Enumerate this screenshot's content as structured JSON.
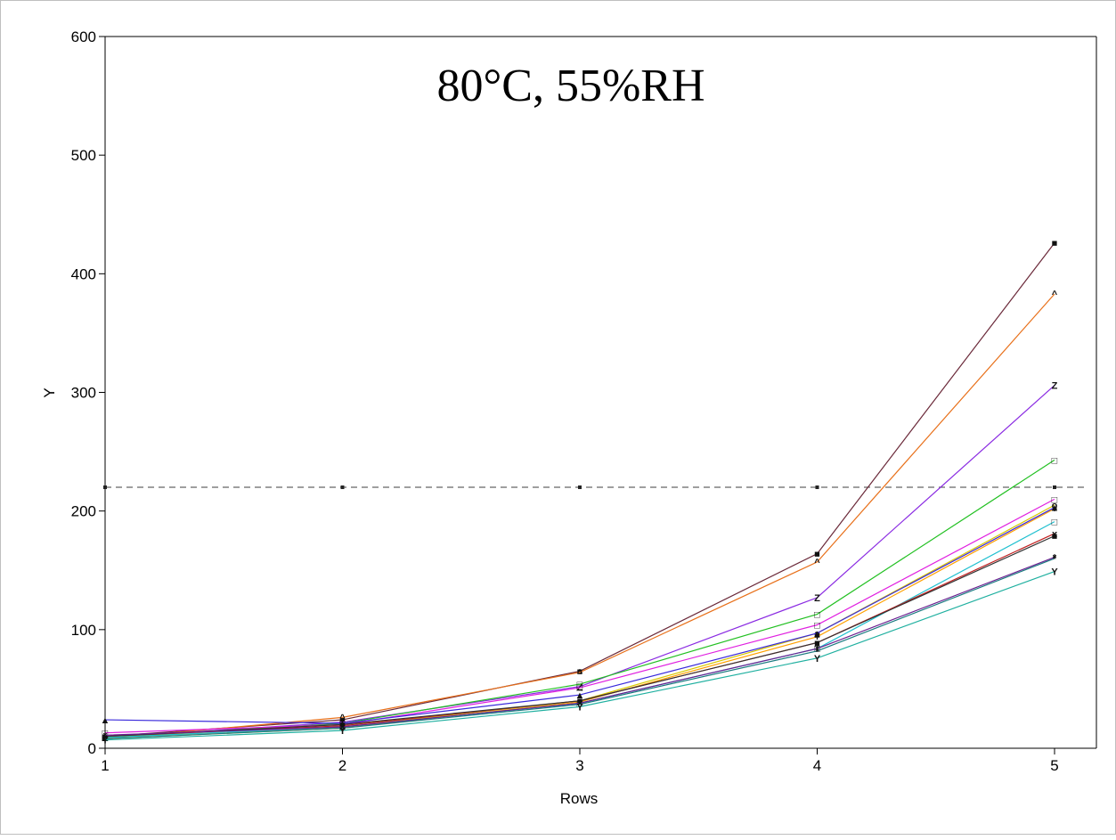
{
  "chart_data": {
    "type": "line",
    "title": "80°C, 55%RH",
    "xlabel": "Rows",
    "ylabel": "Y",
    "xlim": [
      1,
      5
    ],
    "ylim": [
      0,
      600
    ],
    "x": [
      1,
      2,
      3,
      4,
      5
    ],
    "x_ticks": [
      "1",
      "2",
      "3",
      "4",
      "5"
    ],
    "y_ticks": [
      "0",
      "100",
      "200",
      "300",
      "400",
      "500",
      "600"
    ],
    "grid": false,
    "reference_line": {
      "y": 220,
      "style": "dashed",
      "color": "#666666"
    },
    "series": [
      {
        "color": "#6b2a3a",
        "marker": "■",
        "values": [
          10,
          24,
          65,
          164,
          426
        ]
      },
      {
        "color": "#e8701a",
        "marker": "^",
        "values": [
          8,
          26,
          64,
          157,
          383
        ]
      },
      {
        "color": "#8a2be2",
        "marker": "Z",
        "values": [
          9,
          22,
          52,
          127,
          306
        ]
      },
      {
        "color": "#22c022",
        "marker": "□",
        "values": [
          9,
          21,
          54,
          113,
          243
        ]
      },
      {
        "color": "#e020e0",
        "marker": "□",
        "values": [
          13,
          20,
          51,
          104,
          210
        ]
      },
      {
        "color": "#d8c800",
        "marker": "o",
        "values": [
          9,
          18,
          40,
          97,
          205
        ]
      },
      {
        "color": "#ffa000",
        "marker": "+",
        "values": [
          8,
          17,
          39,
          94,
          202
        ]
      },
      {
        "color": "#3a2adb",
        "marker": "▲",
        "values": [
          24,
          21,
          45,
          97,
          203
        ]
      },
      {
        "color": "#20c0d0",
        "marker": "□",
        "values": [
          9,
          18,
          38,
          84,
          191
        ]
      },
      {
        "color": "#c02020",
        "marker": "x",
        "values": [
          10,
          19,
          40,
          89,
          181
        ]
      },
      {
        "color": "#333333",
        "marker": "■",
        "values": [
          10,
          20,
          40,
          89,
          179
        ]
      },
      {
        "color": "#6a2090",
        "marker": "*",
        "values": [
          11,
          18,
          38,
          84,
          161
        ]
      },
      {
        "color": "#1a7a80",
        "marker": "*",
        "values": [
          8,
          17,
          37,
          82,
          160
        ]
      },
      {
        "color": "#20b0a0",
        "marker": "Y",
        "values": [
          7,
          15,
          35,
          76,
          149
        ]
      }
    ]
  }
}
